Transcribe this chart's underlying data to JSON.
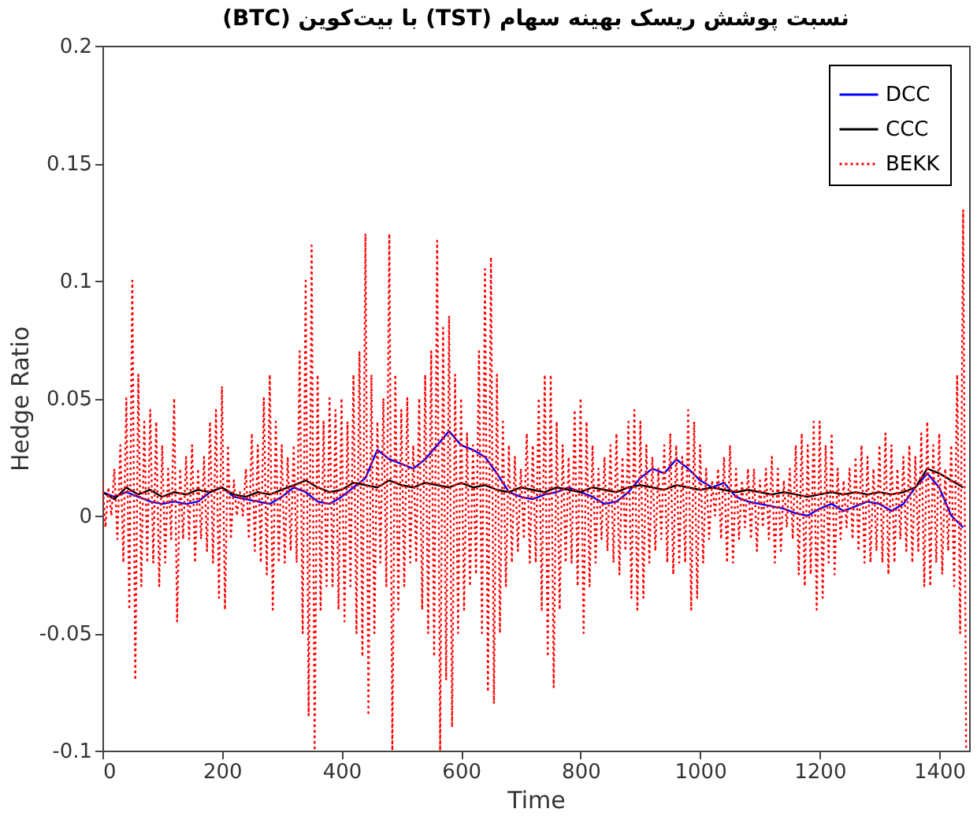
{
  "chart_data": {
    "type": "line",
    "title": "نسبت پوشش ریسک بهینه سهام (TST) با بیت‌کوین (BTC)",
    "xlabel": "Time",
    "ylabel": "Hedge Ratio",
    "xlim": [
      0,
      1450
    ],
    "ylim": [
      -0.1,
      0.2
    ],
    "xticks": [
      0,
      200,
      400,
      600,
      800,
      1000,
      1200,
      1400
    ],
    "yticks": [
      -0.1,
      -0.05,
      0,
      0.05,
      0.1,
      0.15,
      0.2
    ],
    "legend": "top right",
    "series": [
      {
        "name": "DCC",
        "color": "#0000ff",
        "line_style": "solid",
        "x": [
          0,
          20,
          40,
          60,
          80,
          100,
          120,
          140,
          160,
          180,
          200,
          220,
          240,
          260,
          280,
          300,
          320,
          340,
          360,
          380,
          400,
          420,
          440,
          460,
          480,
          500,
          520,
          540,
          560,
          580,
          600,
          620,
          640,
          660,
          680,
          700,
          720,
          740,
          760,
          780,
          800,
          820,
          840,
          860,
          880,
          900,
          920,
          940,
          960,
          980,
          1000,
          1020,
          1040,
          1060,
          1080,
          1100,
          1120,
          1140,
          1160,
          1180,
          1200,
          1220,
          1240,
          1260,
          1280,
          1300,
          1320,
          1340,
          1360,
          1380,
          1400,
          1420,
          1440
        ],
        "values": [
          0.01,
          0.008,
          0.01,
          0.008,
          0.006,
          0.005,
          0.006,
          0.005,
          0.006,
          0.01,
          0.012,
          0.008,
          0.007,
          0.006,
          0.005,
          0.008,
          0.012,
          0.01,
          0.006,
          0.005,
          0.008,
          0.012,
          0.016,
          0.028,
          0.024,
          0.022,
          0.02,
          0.024,
          0.03,
          0.036,
          0.03,
          0.028,
          0.025,
          0.018,
          0.01,
          0.008,
          0.007,
          0.009,
          0.01,
          0.012,
          0.01,
          0.008,
          0.005,
          0.006,
          0.01,
          0.016,
          0.02,
          0.018,
          0.024,
          0.02,
          0.015,
          0.012,
          0.014,
          0.008,
          0.006,
          0.005,
          0.004,
          0.003,
          0.001,
          0.0,
          0.003,
          0.005,
          0.002,
          0.004,
          0.006,
          0.005,
          0.002,
          0.005,
          0.012,
          0.018,
          0.012,
          0.0,
          -0.005
        ]
      },
      {
        "name": "CCC",
        "color": "#000000",
        "line_style": "solid",
        "x": [
          0,
          20,
          40,
          60,
          80,
          100,
          120,
          140,
          160,
          180,
          200,
          220,
          240,
          260,
          280,
          300,
          320,
          340,
          360,
          380,
          400,
          420,
          440,
          460,
          480,
          500,
          520,
          540,
          560,
          580,
          600,
          620,
          640,
          660,
          680,
          700,
          720,
          740,
          760,
          780,
          800,
          820,
          840,
          860,
          880,
          900,
          920,
          940,
          960,
          980,
          1000,
          1020,
          1040,
          1060,
          1080,
          1100,
          1120,
          1140,
          1160,
          1180,
          1200,
          1220,
          1240,
          1260,
          1280,
          1300,
          1320,
          1340,
          1360,
          1380,
          1400,
          1420,
          1440
        ],
        "values": [
          0.01,
          0.007,
          0.012,
          0.009,
          0.011,
          0.008,
          0.01,
          0.009,
          0.011,
          0.01,
          0.012,
          0.009,
          0.008,
          0.01,
          0.009,
          0.011,
          0.013,
          0.015,
          0.012,
          0.01,
          0.011,
          0.014,
          0.013,
          0.012,
          0.015,
          0.013,
          0.012,
          0.014,
          0.013,
          0.012,
          0.014,
          0.012,
          0.013,
          0.011,
          0.01,
          0.012,
          0.011,
          0.01,
          0.012,
          0.011,
          0.01,
          0.012,
          0.011,
          0.01,
          0.012,
          0.013,
          0.012,
          0.011,
          0.013,
          0.012,
          0.011,
          0.012,
          0.011,
          0.01,
          0.011,
          0.01,
          0.009,
          0.01,
          0.009,
          0.008,
          0.009,
          0.01,
          0.009,
          0.01,
          0.009,
          0.01,
          0.009,
          0.01,
          0.012,
          0.02,
          0.018,
          0.015,
          0.012
        ]
      },
      {
        "name": "BEKK",
        "color": "#ff0000",
        "line_style": "dotted",
        "x": [
          0,
          5,
          10,
          15,
          20,
          25,
          30,
          35,
          40,
          45,
          50,
          55,
          60,
          65,
          70,
          75,
          80,
          85,
          90,
          95,
          100,
          105,
          110,
          115,
          120,
          125,
          130,
          135,
          140,
          145,
          150,
          155,
          160,
          165,
          170,
          175,
          180,
          185,
          190,
          195,
          200,
          205,
          210,
          215,
          220,
          225,
          230,
          235,
          240,
          245,
          250,
          255,
          260,
          265,
          270,
          275,
          280,
          285,
          290,
          295,
          300,
          305,
          310,
          315,
          320,
          325,
          330,
          335,
          340,
          345,
          350,
          355,
          360,
          365,
          370,
          375,
          380,
          385,
          390,
          395,
          400,
          405,
          410,
          415,
          420,
          425,
          430,
          435,
          440,
          445,
          450,
          455,
          460,
          465,
          470,
          475,
          480,
          485,
          490,
          495,
          500,
          505,
          510,
          515,
          520,
          525,
          530,
          535,
          540,
          545,
          550,
          555,
          560,
          565,
          570,
          575,
          580,
          585,
          590,
          595,
          600,
          605,
          610,
          615,
          620,
          625,
          630,
          635,
          640,
          645,
          650,
          655,
          660,
          665,
          670,
          675,
          680,
          685,
          690,
          695,
          700,
          705,
          710,
          715,
          720,
          725,
          730,
          735,
          740,
          745,
          750,
          755,
          760,
          765,
          770,
          775,
          780,
          785,
          790,
          795,
          800,
          805,
          810,
          815,
          820,
          825,
          830,
          835,
          840,
          845,
          850,
          855,
          860,
          865,
          870,
          875,
          880,
          885,
          890,
          895,
          900,
          905,
          910,
          915,
          920,
          925,
          930,
          935,
          940,
          945,
          950,
          955,
          960,
          965,
          970,
          975,
          980,
          985,
          990,
          995,
          1000,
          1005,
          1010,
          1015,
          1020,
          1025,
          1030,
          1035,
          1040,
          1045,
          1050,
          1055,
          1060,
          1065,
          1070,
          1075,
          1080,
          1085,
          1090,
          1095,
          1100,
          1105,
          1110,
          1115,
          1120,
          1125,
          1130,
          1135,
          1140,
          1145,
          1150,
          1155,
          1160,
          1165,
          1170,
          1175,
          1180,
          1185,
          1190,
          1195,
          1200,
          1205,
          1210,
          1215,
          1220,
          1225,
          1230,
          1235,
          1240,
          1245,
          1250,
          1255,
          1260,
          1265,
          1270,
          1275,
          1280,
          1285,
          1290,
          1295,
          1300,
          1305,
          1310,
          1315,
          1320,
          1325,
          1330,
          1335,
          1340,
          1345,
          1350,
          1355,
          1360,
          1365,
          1370,
          1375,
          1380,
          1385,
          1390,
          1395,
          1400,
          1405,
          1410,
          1415,
          1420,
          1425,
          1430,
          1435,
          1440,
          1445
        ],
        "values": [
          0.015,
          -0.005,
          0.012,
          0.0,
          0.02,
          -0.01,
          0.03,
          -0.02,
          0.05,
          -0.04,
          0.1,
          -0.07,
          0.06,
          -0.03,
          0.04,
          -0.02,
          0.045,
          -0.02,
          0.04,
          -0.03,
          0.03,
          -0.02,
          0.02,
          -0.01,
          0.05,
          -0.045,
          0.02,
          -0.01,
          0.025,
          -0.01,
          0.03,
          -0.02,
          0.02,
          -0.01,
          0.025,
          -0.015,
          0.04,
          -0.02,
          0.045,
          -0.035,
          0.055,
          -0.04,
          0.03,
          -0.01,
          0.015,
          0.0,
          0.01,
          0.0,
          0.02,
          -0.01,
          0.035,
          -0.015,
          0.03,
          -0.02,
          0.05,
          -0.025,
          0.06,
          -0.04,
          0.04,
          -0.02,
          0.03,
          -0.02,
          0.025,
          -0.015,
          0.03,
          -0.02,
          0.07,
          -0.05,
          0.1,
          -0.085,
          0.115,
          -0.1,
          0.06,
          -0.04,
          0.04,
          -0.03,
          0.05,
          -0.03,
          0.045,
          -0.04,
          0.05,
          -0.045,
          0.04,
          -0.03,
          0.06,
          -0.05,
          0.07,
          -0.06,
          0.12,
          -0.085,
          0.06,
          -0.05,
          0.04,
          -0.02,
          0.05,
          -0.03,
          0.12,
          -0.1,
          0.06,
          -0.04,
          0.045,
          -0.03,
          0.05,
          -0.02,
          0.03,
          -0.02,
          0.05,
          -0.04,
          0.06,
          -0.05,
          0.07,
          -0.06,
          0.117,
          -0.1,
          0.08,
          -0.07,
          0.085,
          -0.09,
          0.06,
          -0.05,
          0.05,
          -0.04,
          0.035,
          -0.03,
          0.03,
          -0.025,
          0.07,
          -0.05,
          0.105,
          -0.075,
          0.11,
          -0.08,
          0.06,
          -0.05,
          0.04,
          -0.03,
          0.03,
          -0.02,
          0.025,
          -0.015,
          0.02,
          -0.01,
          0.035,
          -0.02,
          0.03,
          -0.02,
          0.05,
          -0.04,
          0.06,
          -0.06,
          0.06,
          -0.073,
          0.04,
          -0.04,
          0.03,
          -0.02,
          0.025,
          -0.02,
          0.045,
          -0.03,
          0.05,
          -0.05,
          0.04,
          -0.03,
          0.03,
          -0.02,
          0.02,
          -0.01,
          0.025,
          -0.015,
          0.03,
          -0.02,
          0.035,
          -0.025,
          0.025,
          -0.015,
          0.04,
          -0.035,
          0.045,
          -0.04,
          0.04,
          -0.035,
          0.03,
          -0.02,
          0.025,
          -0.015,
          0.02,
          -0.01,
          0.03,
          -0.02,
          0.035,
          -0.025,
          0.03,
          -0.02,
          0.025,
          -0.02,
          0.045,
          -0.04,
          0.04,
          -0.035,
          0.03,
          -0.02,
          0.02,
          -0.01,
          0.015,
          0.0,
          0.02,
          -0.01,
          0.025,
          -0.02,
          0.03,
          -0.02,
          0.02,
          -0.01,
          0.015,
          -0.005,
          0.02,
          -0.01,
          0.02,
          -0.015,
          0.015,
          -0.005,
          0.02,
          -0.01,
          0.025,
          -0.02,
          0.02,
          -0.015,
          0.015,
          -0.005,
          0.02,
          -0.01,
          0.03,
          -0.025,
          0.035,
          -0.03,
          0.03,
          -0.025,
          0.04,
          -0.04,
          0.04,
          -0.035,
          0.03,
          -0.02,
          0.035,
          -0.025,
          0.02,
          -0.01,
          0.015,
          -0.005,
          0.02,
          -0.01,
          0.025,
          -0.015,
          0.03,
          -0.02,
          0.025,
          -0.02,
          0.02,
          -0.015,
          0.03,
          -0.02,
          0.035,
          -0.025,
          0.03,
          -0.02,
          0.02,
          -0.01,
          0.025,
          -0.015,
          0.03,
          -0.02,
          0.025,
          -0.015,
          0.035,
          -0.03,
          0.04,
          -0.03,
          0.03,
          -0.02,
          0.035,
          -0.025,
          0.02,
          -0.015,
          0.03,
          -0.03,
          0.06,
          -0.05,
          0.13,
          -0.1
        ]
      }
    ]
  }
}
